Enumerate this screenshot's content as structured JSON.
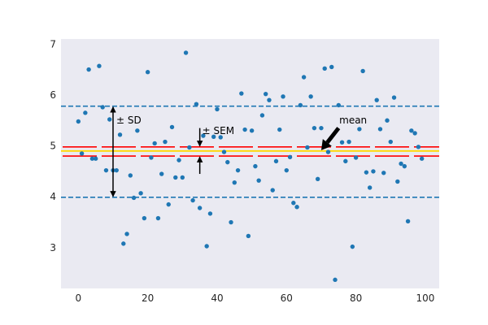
{
  "chart_data": {
    "type": "scatter",
    "xlim": [
      -5,
      104
    ],
    "ylim": [
      2.2,
      7.1
    ],
    "x_ticks": [
      "0",
      "20",
      "40",
      "60",
      "80",
      "100"
    ],
    "y_ticks": [
      "3",
      "4",
      "5",
      "6",
      "7"
    ],
    "grid": false,
    "colors": {
      "background": "#eaeaf2",
      "points": "#1f77b4",
      "sd_lines": "#1f77b4",
      "sem_lines": "#ff0000",
      "mean_line": "#ffd700"
    },
    "series": [
      {
        "values": [
          [
            0,
            5.48
          ],
          [
            1,
            4.85
          ],
          [
            2,
            5.65
          ],
          [
            3,
            6.5
          ],
          [
            4,
            4.75
          ],
          [
            5,
            4.75
          ],
          [
            6,
            6.57
          ],
          [
            7,
            5.76
          ],
          [
            8,
            4.52
          ],
          [
            9,
            5.52
          ],
          [
            10,
            4.52
          ],
          [
            11,
            4.52
          ],
          [
            12,
            5.22
          ],
          [
            13,
            3.08
          ],
          [
            14,
            3.27
          ],
          [
            15,
            4.42
          ],
          [
            16,
            3.98
          ],
          [
            17,
            5.3
          ],
          [
            18,
            4.07
          ],
          [
            19,
            3.58
          ],
          [
            20,
            6.45
          ],
          [
            21,
            4.77
          ],
          [
            22,
            5.05
          ],
          [
            23,
            3.58
          ],
          [
            24,
            4.45
          ],
          [
            25,
            5.08
          ],
          [
            26,
            3.85
          ],
          [
            27,
            5.37
          ],
          [
            28,
            4.38
          ],
          [
            29,
            4.72
          ],
          [
            30,
            4.38
          ],
          [
            31,
            6.83
          ],
          [
            32,
            4.97
          ],
          [
            33,
            3.93
          ],
          [
            34,
            5.82
          ],
          [
            35,
            3.78
          ],
          [
            36,
            5.2
          ],
          [
            37,
            3.03
          ],
          [
            38,
            3.67
          ],
          [
            39,
            5.18
          ],
          [
            40,
            5.72
          ],
          [
            41,
            5.17
          ],
          [
            42,
            4.88
          ],
          [
            43,
            4.68
          ],
          [
            44,
            3.5
          ],
          [
            45,
            4.28
          ],
          [
            46,
            4.52
          ],
          [
            47,
            6.03
          ],
          [
            48,
            5.32
          ],
          [
            49,
            3.23
          ],
          [
            50,
            5.3
          ],
          [
            51,
            4.6
          ],
          [
            52,
            4.32
          ],
          [
            53,
            5.6
          ],
          [
            54,
            6.02
          ],
          [
            55,
            5.9
          ],
          [
            56,
            4.13
          ],
          [
            57,
            4.7
          ],
          [
            58,
            5.32
          ],
          [
            59,
            5.97
          ],
          [
            60,
            4.52
          ],
          [
            61,
            4.78
          ],
          [
            62,
            3.88
          ],
          [
            63,
            3.8
          ],
          [
            64,
            5.8
          ],
          [
            65,
            6.35
          ],
          [
            66,
            4.97
          ],
          [
            67,
            5.97
          ],
          [
            68,
            5.35
          ],
          [
            69,
            4.35
          ],
          [
            70,
            5.35
          ],
          [
            71,
            6.52
          ],
          [
            72,
            4.88
          ],
          [
            73,
            6.55
          ],
          [
            74,
            2.37
          ],
          [
            75,
            5.8
          ],
          [
            76,
            5.07
          ],
          [
            77,
            4.7
          ],
          [
            78,
            5.08
          ],
          [
            79,
            3.02
          ],
          [
            80,
            4.77
          ],
          [
            81,
            5.33
          ],
          [
            82,
            6.47
          ],
          [
            83,
            4.48
          ],
          [
            84,
            4.18
          ],
          [
            85,
            4.5
          ],
          [
            86,
            5.9
          ],
          [
            87,
            5.33
          ],
          [
            88,
            4.47
          ],
          [
            89,
            5.5
          ],
          [
            90,
            5.08
          ],
          [
            91,
            5.95
          ],
          [
            92,
            4.3
          ],
          [
            93,
            4.65
          ],
          [
            94,
            4.6
          ],
          [
            95,
            3.52
          ],
          [
            96,
            5.3
          ],
          [
            97,
            5.25
          ],
          [
            98,
            4.98
          ],
          [
            99,
            4.75
          ]
        ]
      }
    ],
    "mean": 4.9,
    "sd_lines": [
      5.78,
      3.99
    ],
    "sem_lines": [
      4.98,
      4.8
    ],
    "annotations": {
      "sd_label": "± SD",
      "sem_label": "± SEM",
      "mean_label": "mean"
    }
  }
}
